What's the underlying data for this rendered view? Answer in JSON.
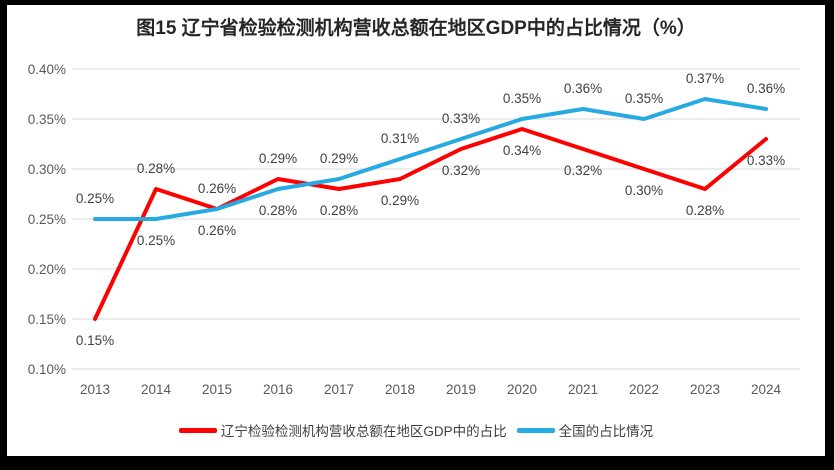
{
  "window": {
    "frame_color": "#000000",
    "panel_color": "#ffffff"
  },
  "chart_data": {
    "type": "line",
    "title": "图15 辽宁省检验检测机构营收总额在地区GDP中的占比情况（%）",
    "categories": [
      "2013",
      "2014",
      "2015",
      "2016",
      "2017",
      "2018",
      "2019",
      "2020",
      "2021",
      "2022",
      "2023",
      "2024"
    ],
    "y_axis": {
      "ticks": [
        "0.40%",
        "0.35%",
        "0.30%",
        "0.25%",
        "0.20%",
        "0.15%",
        "0.10%"
      ],
      "min": 0.1,
      "max": 0.4,
      "unit": "%"
    },
    "grid": true,
    "legend_position": "bottom",
    "gridline_color": "#D9D9D9",
    "axis_text_color": "#595959",
    "data_label_color": "#404040",
    "series": [
      {
        "name": "辽宁检验检测机构营收总额在地区GDP中的占比",
        "color": "#FF0000",
        "values": [
          0.15,
          0.28,
          0.26,
          0.29,
          0.28,
          0.29,
          0.32,
          0.34,
          0.32,
          0.3,
          0.28,
          0.33
        ],
        "label_side": [
          "below",
          "above",
          "above",
          "above",
          "below",
          "below",
          "below",
          "below",
          "below",
          "below",
          "below",
          "below"
        ]
      },
      {
        "name": "全国的占比情况",
        "color": "#27AAE1",
        "values": [
          0.25,
          0.25,
          0.26,
          0.28,
          0.29,
          0.31,
          0.33,
          0.35,
          0.36,
          0.35,
          0.37,
          0.36
        ],
        "label_side": [
          "above",
          "below",
          "below",
          "below",
          "above",
          "above",
          "above",
          "above",
          "above",
          "above",
          "above",
          "above"
        ]
      }
    ]
  }
}
